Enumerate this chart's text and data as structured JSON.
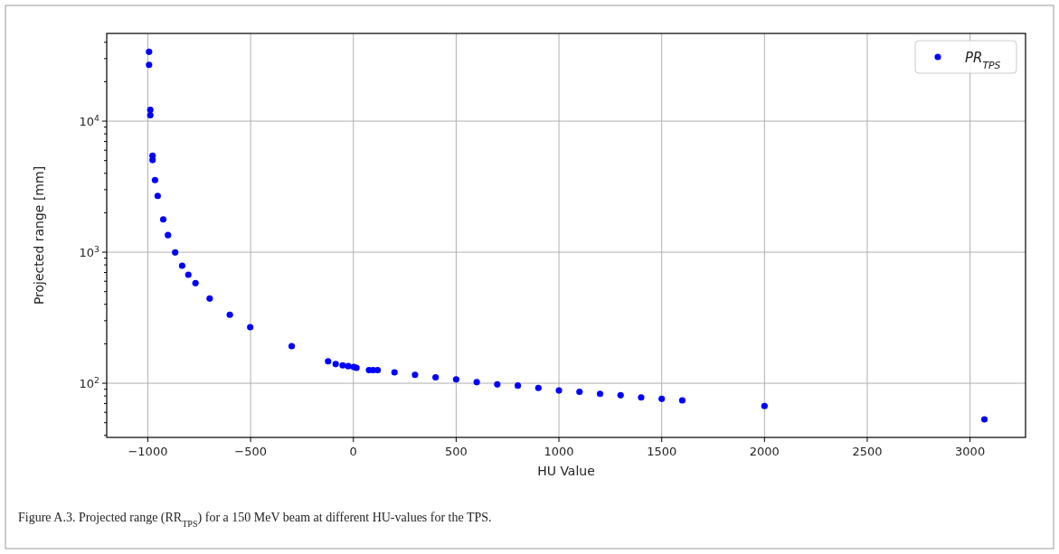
{
  "chart_data": {
    "type": "scatter",
    "xlabel": "HU Value",
    "ylabel": "Projected range [mm]",
    "annotations": [
      "Figure A.3. Projected range (RR$_{TPS}$) for a 150 MeV beam at different HU-values for the TPS."
    ],
    "log": "y",
    "grid": true,
    "legend": "top right",
    "marker": "circle",
    "xlim": [
      -1200,
      3270
    ],
    "xticks": [
      {
        "value": -1000,
        "label": "−1000"
      },
      {
        "value": -500,
        "label": "−500"
      },
      0,
      500,
      1000,
      1500,
      2000,
      2500,
      3000
    ],
    "ylim": [
      38.6,
      46700
    ],
    "yticks": [
      {
        "value": 40,
        "label": null
      },
      {
        "value": 50,
        "label": null
      },
      {
        "value": 60,
        "label": null
      },
      {
        "value": 70,
        "label": null
      },
      {
        "value": 80,
        "label": null
      },
      {
        "value": 90,
        "label": null
      },
      {
        "value": 100,
        "label": "10$^{2}$"
      },
      {
        "value": 200,
        "label": null
      },
      {
        "value": 300,
        "label": null
      },
      {
        "value": 400,
        "label": null
      },
      {
        "value": 500,
        "label": null
      },
      {
        "value": 600,
        "label": null
      },
      {
        "value": 700,
        "label": null
      },
      {
        "value": 800,
        "label": null
      },
      {
        "value": 900,
        "label": null
      },
      {
        "value": 1000,
        "label": "10$^{3}$"
      },
      {
        "value": 2000,
        "label": null
      },
      {
        "value": 3000,
        "label": null
      },
      {
        "value": 4000,
        "label": null
      },
      {
        "value": 5000,
        "label": null
      },
      {
        "value": 6000,
        "label": null
      },
      {
        "value": 7000,
        "label": null
      },
      {
        "value": 8000,
        "label": null
      },
      {
        "value": 9000,
        "label": null
      },
      {
        "value": 10000,
        "label": "10$^{4}$"
      },
      {
        "value": 20000,
        "label": null
      },
      {
        "value": 30000,
        "label": null
      },
      {
        "value": 40000,
        "label": null
      }
    ],
    "series": [
      {
        "name": "PR$_{TPS}$",
        "color": "#0000ff",
        "x": [
          -994,
          -994,
          -988,
          -988,
          -977,
          -977,
          -965,
          -952,
          -925,
          -902,
          -867,
          -833,
          -803,
          -768,
          -699,
          -601,
          -502,
          -300,
          -123,
          -86,
          -52,
          -25,
          2,
          15,
          76,
          96,
          118,
          200,
          300,
          400,
          500,
          600,
          700,
          800,
          900,
          1000,
          1100,
          1200,
          1300,
          1400,
          1500,
          1600,
          2000,
          3070
        ],
        "values": [
          33800,
          26900,
          12200,
          11100,
          5450,
          5050,
          3550,
          2690,
          1780,
          1350,
          995,
          789,
          673,
          580,
          443,
          333,
          268,
          192,
          147,
          140,
          137,
          135,
          133,
          131,
          126,
          126,
          126,
          121,
          116,
          111,
          107,
          102,
          98,
          96,
          92,
          88,
          86,
          83,
          81,
          78,
          76,
          74,
          67,
          53
        ]
      }
    ]
  }
}
